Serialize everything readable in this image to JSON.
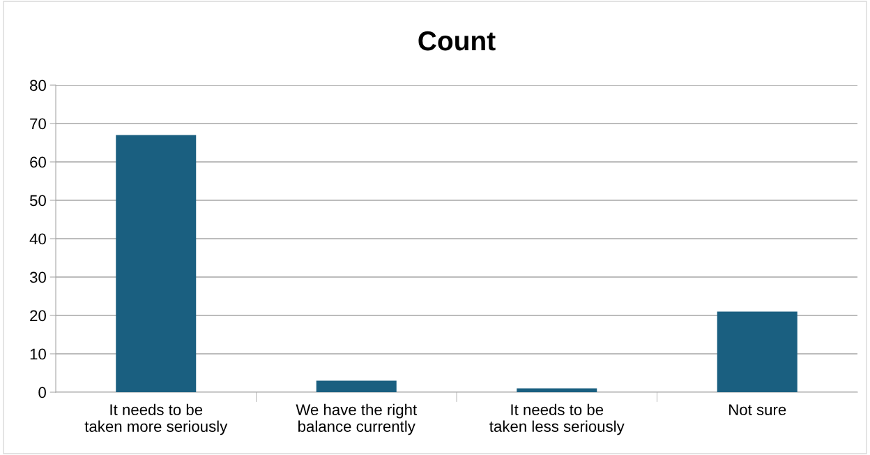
{
  "chart_data": {
    "type": "bar",
    "title": "Count",
    "categories": [
      "It needs to be taken more seriously",
      "We have the right balance currently",
      "It needs to be taken less seriously",
      "Not sure"
    ],
    "values": [
      67,
      3,
      1,
      21
    ],
    "color": "#1a5f80",
    "ylim": [
      0,
      80
    ],
    "yticks": [
      0,
      10,
      20,
      30,
      40,
      50,
      60,
      70,
      80
    ],
    "grid": "y",
    "legend": false
  }
}
